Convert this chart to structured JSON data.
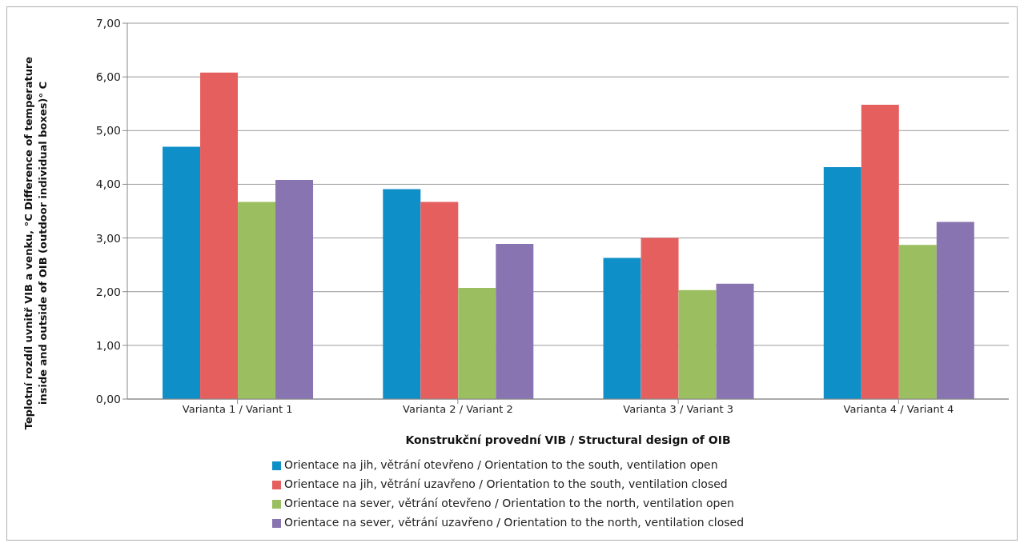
{
  "chart_data": {
    "type": "bar",
    "xlabel": "Konstrukční provední VIB  / Structural design of OIB",
    "ylabel": "Teplotní rozdíl uvnitř VIB a venku, °C  Difference of temperature\ninside and outside of OIB (outdoor individual  boxes)° C",
    "categories": [
      "Varianta 1 / Variant 1",
      "Varianta 2 / Variant 2",
      "Varianta 3 / Variant 3",
      "Varianta 4 / Variant 4"
    ],
    "series": [
      {
        "name": "Orientace na jih, větrání otevřeno / Orientation to the south,  ventilation open",
        "color": "#0f8fc8",
        "values": [
          4.7,
          3.91,
          2.63,
          4.32
        ]
      },
      {
        "name": "Orientace na jih, větrání uzavřeno / Orientation to the south, ventilation closed",
        "color": "#e55f5f",
        "values": [
          6.08,
          3.67,
          3.0,
          5.48
        ]
      },
      {
        "name": "Orientace na sever, větrání otevřeno / Orientation to the north, ventilation open",
        "color": "#9bbf60",
        "values": [
          3.67,
          2.07,
          2.03,
          2.87
        ]
      },
      {
        "name": "Orientace na sever, větrání uzavřeno / Orientation to the north, ventilation  closed",
        "color": "#8874b0",
        "values": [
          4.08,
          2.89,
          2.15,
          3.3
        ]
      }
    ],
    "ylim": [
      0,
      7
    ],
    "yticks": [
      {
        "value": 0,
        "label": "0,00"
      },
      {
        "value": 1,
        "label": "1,00"
      },
      {
        "value": 2,
        "label": "2,00"
      },
      {
        "value": 3,
        "label": "3,00"
      },
      {
        "value": 4,
        "label": "4,00"
      },
      {
        "value": 5,
        "label": "5,00"
      },
      {
        "value": 6,
        "label": "6,00"
      },
      {
        "value": 7,
        "label": "7,00"
      }
    ],
    "grid": "y",
    "legend": "bottom"
  }
}
